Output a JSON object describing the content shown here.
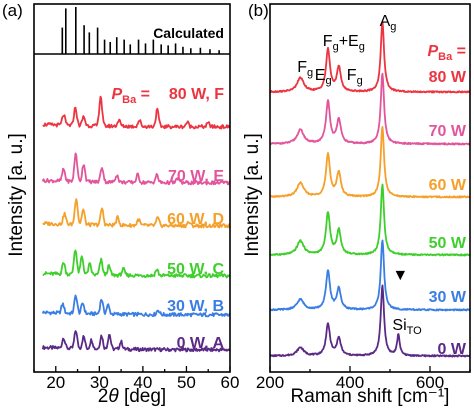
{
  "chart_data": [
    {
      "type": "line",
      "panel_label": "(a)",
      "xlabel_prefix": "2",
      "xlabel_symbol": "θ",
      "xlabel_suffix": " [deg]",
      "ylabel": "Intensity [a. u.]",
      "xlim": [
        15,
        60
      ],
      "xticks": [
        20,
        30,
        40,
        50,
        60
      ],
      "reference_label": "Calculated",
      "reference_peaks": [
        {
          "x": 21.5,
          "h": 0.55
        },
        {
          "x": 22.3,
          "h": 0.95
        },
        {
          "x": 24.6,
          "h": 0.98
        },
        {
          "x": 26.5,
          "h": 0.6
        },
        {
          "x": 27.7,
          "h": 0.45
        },
        {
          "x": 29.6,
          "h": 0.55
        },
        {
          "x": 31.2,
          "h": 0.3
        },
        {
          "x": 32.5,
          "h": 0.25
        },
        {
          "x": 34.0,
          "h": 0.35
        },
        {
          "x": 35.7,
          "h": 0.3
        },
        {
          "x": 37.1,
          "h": 0.2
        },
        {
          "x": 39.0,
          "h": 0.3
        },
        {
          "x": 40.6,
          "h": 0.22
        },
        {
          "x": 42.4,
          "h": 0.3
        },
        {
          "x": 44.2,
          "h": 0.2
        },
        {
          "x": 45.8,
          "h": 0.18
        },
        {
          "x": 47.5,
          "h": 0.22
        },
        {
          "x": 49.2,
          "h": 0.15
        },
        {
          "x": 51.0,
          "h": 0.12
        },
        {
          "x": 53.2,
          "h": 0.13
        },
        {
          "x": 55.4,
          "h": 0.1
        },
        {
          "x": 57.5,
          "h": 0.08
        }
      ],
      "series": [
        {
          "label": "0 W, A",
          "color": "#5b2a86",
          "peaks": [
            {
              "x": 21.8,
              "a": 0.35
            },
            {
              "x": 24.6,
              "a": 0.6
            },
            {
              "x": 26.4,
              "a": 0.4
            },
            {
              "x": 28.2,
              "a": 0.3
            },
            {
              "x": 30.5,
              "a": 0.45
            },
            {
              "x": 32.3,
              "a": 0.5
            },
            {
              "x": 35.0,
              "a": 0.25
            }
          ]
        },
        {
          "label": "30 W, B",
          "color": "#3a7ee4",
          "peaks": [
            {
              "x": 21.6,
              "a": 0.3
            },
            {
              "x": 24.6,
              "a": 0.6
            },
            {
              "x": 26.2,
              "a": 0.35
            },
            {
              "x": 30.5,
              "a": 0.5
            },
            {
              "x": 32.0,
              "a": 0.3
            },
            {
              "x": 43.5,
              "a": 0.15
            }
          ]
        },
        {
          "label": "50 W, C",
          "color": "#3fcf2c",
          "peaks": [
            {
              "x": 21.8,
              "a": 0.4
            },
            {
              "x": 24.5,
              "a": 0.85
            },
            {
              "x": 26.0,
              "a": 0.6
            },
            {
              "x": 27.8,
              "a": 0.35
            },
            {
              "x": 30.4,
              "a": 0.5
            },
            {
              "x": 32.2,
              "a": 0.3
            },
            {
              "x": 35.5,
              "a": 0.2
            },
            {
              "x": 43.2,
              "a": 0.2
            }
          ]
        },
        {
          "label": "60 W, D",
          "color": "#f5a02a",
          "peaks": [
            {
              "x": 22.0,
              "a": 0.35
            },
            {
              "x": 24.7,
              "a": 0.9
            },
            {
              "x": 26.3,
              "a": 0.5
            },
            {
              "x": 30.6,
              "a": 0.55
            },
            {
              "x": 34.2,
              "a": 0.25
            },
            {
              "x": 39.0,
              "a": 0.2
            },
            {
              "x": 43.4,
              "a": 0.25
            },
            {
              "x": 50.5,
              "a": 0.12
            }
          ]
        },
        {
          "label": "70 W, E",
          "color": "#e2559c",
          "peaks": [
            {
              "x": 21.8,
              "a": 0.4
            },
            {
              "x": 24.6,
              "a": 0.95
            },
            {
              "x": 26.4,
              "a": 0.6
            },
            {
              "x": 30.6,
              "a": 0.5
            },
            {
              "x": 34.0,
              "a": 0.25
            },
            {
              "x": 38.8,
              "a": 0.25
            },
            {
              "x": 43.2,
              "a": 0.25
            },
            {
              "x": 48.0,
              "a": 0.15
            }
          ]
        },
        {
          "label": "80 W, F",
          "color": "#ec3540",
          "peaks": [
            {
              "x": 21.8,
              "a": 0.35
            },
            {
              "x": 24.5,
              "a": 0.6
            },
            {
              "x": 26.4,
              "a": 0.3
            },
            {
              "x": 30.3,
              "a": 1.0
            },
            {
              "x": 34.5,
              "a": 0.2
            },
            {
              "x": 39.2,
              "a": 0.2
            },
            {
              "x": 43.3,
              "a": 0.55
            },
            {
              "x": 50.2,
              "a": 0.15
            },
            {
              "x": 55.0,
              "a": 0.12
            }
          ]
        }
      ],
      "annotation": {
        "symbol": "P",
        "subscript": "Ba",
        "suffix": " = ",
        "color": "#ec3540"
      }
    },
    {
      "type": "line",
      "panel_label": "(b)",
      "xlabel": "Raman shift [cm⁻¹]",
      "ylabel": "Intensity [a. u.]",
      "xlim": [
        200,
        700
      ],
      "xticks": [
        200,
        400,
        600
      ],
      "peak_labels": [
        {
          "main": "F",
          "sub": "g",
          "x": 278
        },
        {
          "main": "E",
          "sub": "g",
          "x": 318
        },
        {
          "main": "F",
          "sub": "g",
          "x": 360,
          "extra_main": "+E",
          "extra_sub": "g"
        },
        {
          "main": "F",
          "sub": "g",
          "x": 400
        },
        {
          "main": "A",
          "sub": "g",
          "x": 480
        }
      ],
      "si_label": {
        "main": "Si",
        "sub": "TO"
      },
      "marker": "▼",
      "annotation": {
        "symbol": "P",
        "subscript": "Ba",
        "suffix": " =",
        "color": "#ec3540"
      },
      "series": [
        {
          "label": "0 W",
          "color": "#5b2a86",
          "peaks": [
            {
              "x": 276,
              "a": 0.12,
              "w": 10
            },
            {
              "x": 345,
              "a": 0.45,
              "w": 6
            },
            {
              "x": 372,
              "a": 0.25,
              "w": 6
            },
            {
              "x": 481,
              "a": 1.0,
              "w": 5
            },
            {
              "x": 521,
              "a": 0.3,
              "w": 4
            }
          ]
        },
        {
          "label": "30 W",
          "color": "#3a7ee4",
          "peaks": [
            {
              "x": 276,
              "a": 0.15,
              "w": 10
            },
            {
              "x": 345,
              "a": 0.55,
              "w": 6
            },
            {
              "x": 372,
              "a": 0.3,
              "w": 6
            },
            {
              "x": 481,
              "a": 1.0,
              "w": 5
            }
          ]
        },
        {
          "label": "50 W",
          "color": "#3fcf2c",
          "peaks": [
            {
              "x": 276,
              "a": 0.2,
              "w": 10
            },
            {
              "x": 345,
              "a": 0.6,
              "w": 6
            },
            {
              "x": 372,
              "a": 0.35,
              "w": 6
            },
            {
              "x": 481,
              "a": 1.0,
              "w": 5
            }
          ]
        },
        {
          "label": "60 W",
          "color": "#f5a02a",
          "peaks": [
            {
              "x": 276,
              "a": 0.2,
              "w": 10
            },
            {
              "x": 345,
              "a": 0.6,
              "w": 6
            },
            {
              "x": 372,
              "a": 0.35,
              "w": 6
            },
            {
              "x": 481,
              "a": 1.0,
              "w": 5
            }
          ]
        },
        {
          "label": "70 W",
          "color": "#e2559c",
          "peaks": [
            {
              "x": 276,
              "a": 0.2,
              "w": 10
            },
            {
              "x": 345,
              "a": 0.6,
              "w": 6
            },
            {
              "x": 372,
              "a": 0.35,
              "w": 6
            },
            {
              "x": 481,
              "a": 1.0,
              "w": 5
            }
          ]
        },
        {
          "label": "80 W",
          "color": "#ec3540",
          "peaks": [
            {
              "x": 276,
              "a": 0.2,
              "w": 10
            },
            {
              "x": 345,
              "a": 0.6,
              "w": 6
            },
            {
              "x": 372,
              "a": 0.35,
              "w": 6
            },
            {
              "x": 481,
              "a": 1.0,
              "w": 5
            }
          ]
        }
      ]
    }
  ]
}
